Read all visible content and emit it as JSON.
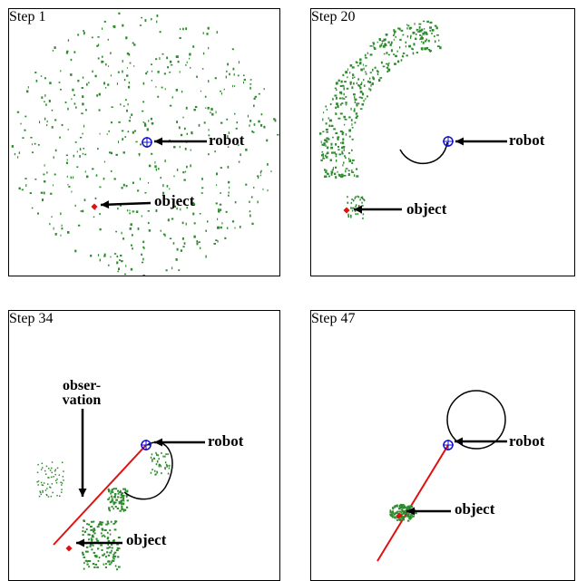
{
  "panels": [
    {
      "step": "Step 1",
      "robot_label": "robot",
      "object_label": "object"
    },
    {
      "step": "Step 20",
      "robot_label": "robot",
      "object_label": "object"
    },
    {
      "step": "Step 34",
      "robot_label": "robot",
      "object_label": "object",
      "observation_label": "obser-vation"
    },
    {
      "step": "Step 47",
      "robot_label": "robot",
      "object_label": "object"
    }
  ],
  "colors": {
    "particles": "#2e8b2e",
    "robot": "#1010d0",
    "object": "#e01010",
    "observation": "#e01010",
    "trajectory": "#000000",
    "label_text": "#000000"
  }
}
